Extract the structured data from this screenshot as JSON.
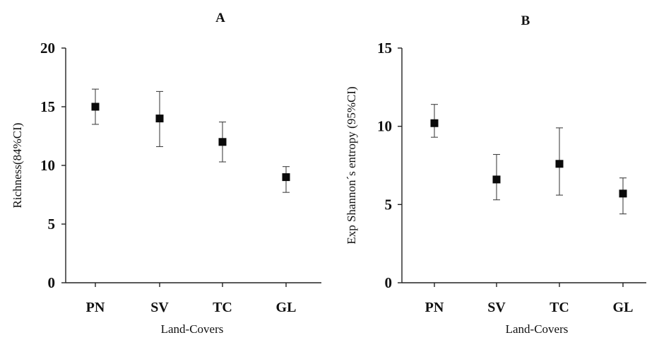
{
  "chart_data": [
    {
      "type": "scatter",
      "panel_label": "A",
      "categories": [
        "PN",
        "SV",
        "TC",
        "GL"
      ],
      "series": [
        {
          "values": [
            15,
            14,
            12,
            9
          ],
          "error_low": [
            13.5,
            11.6,
            10.3,
            7.7
          ],
          "error_high": [
            16.5,
            16.3,
            13.7,
            9.9
          ]
        }
      ],
      "xlabel": "Land-Covers",
      "ylabel": "Richness(84%CI)",
      "ylim": [
        0,
        20
      ],
      "yticks": [
        0,
        5,
        10,
        15,
        20
      ],
      "grid": false,
      "marker": "square"
    },
    {
      "type": "scatter",
      "panel_label": "B",
      "categories": [
        "PN",
        "SV",
        "TC",
        "GL"
      ],
      "series": [
        {
          "values": [
            10.2,
            6.6,
            7.6,
            5.7
          ],
          "error_low": [
            9.3,
            5.3,
            5.6,
            4.4
          ],
          "error_high": [
            11.4,
            8.2,
            9.9,
            6.7
          ]
        }
      ],
      "xlabel": "Land-Covers",
      "ylabel": "Exp Shannon´s entropy (95%CI)",
      "ylim": [
        0,
        15
      ],
      "yticks": [
        0,
        5,
        10,
        15
      ],
      "grid": false,
      "marker": "square"
    }
  ]
}
